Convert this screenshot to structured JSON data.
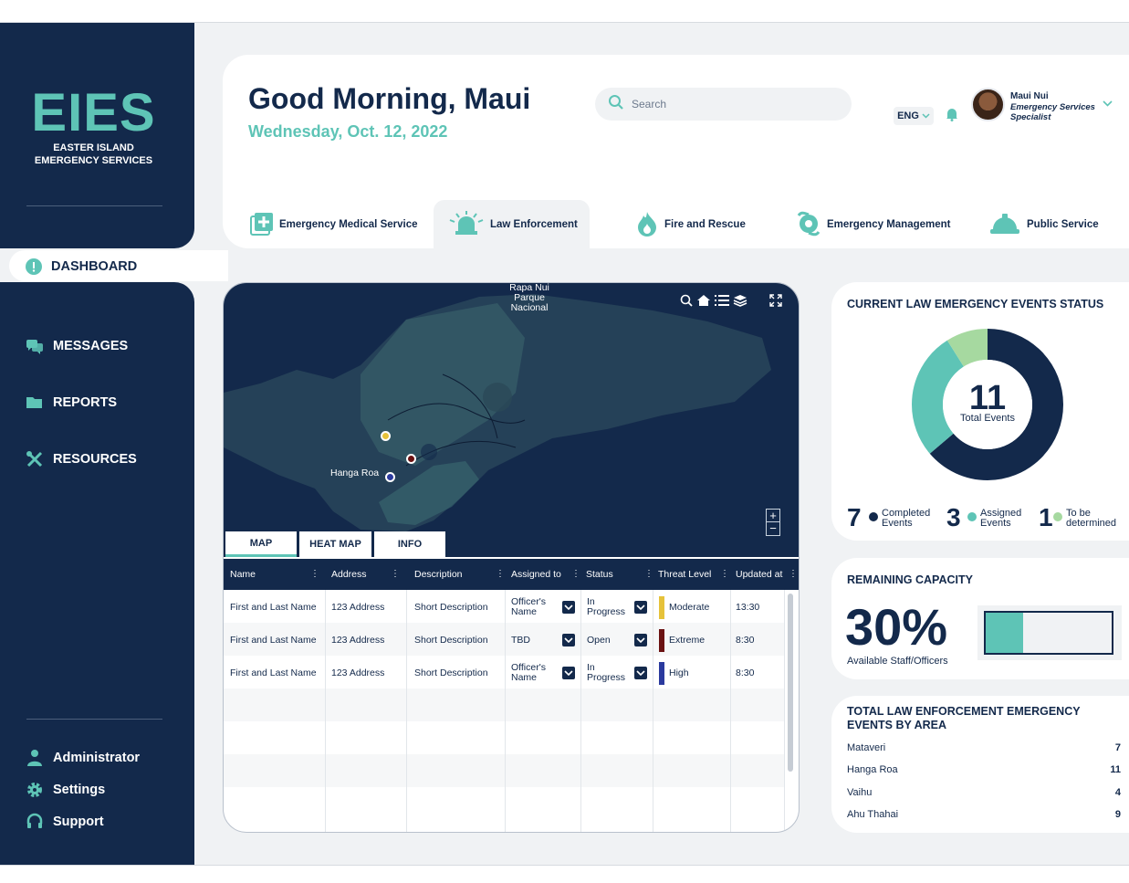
{
  "sidebar": {
    "logo": "EIES",
    "logo_sub_1": "EASTER ISLAND",
    "logo_sub_2": "EMERGENCY SERVICES",
    "nav": [
      "DASHBOARD",
      "MESSAGES",
      "REPORTS",
      "RESOURCES"
    ],
    "bottom": [
      "Administrator",
      "Settings",
      "Support"
    ]
  },
  "header": {
    "greeting": "Good Morning, Maui",
    "date": "Wednesday, Oct. 12, 2022",
    "search_placeholder": "Search",
    "language": "ENG",
    "user_name": "Maui Nui",
    "user_role": "Emergency Services Specialist"
  },
  "tabs": [
    "Emergency Medical Service",
    "Law Enforcement",
    "Fire and Rescue",
    "Emergency Management",
    "Public Service"
  ],
  "active_tab": "Law Enforcement",
  "map": {
    "label_park": "Rapa Nui Parque Nacional",
    "label_town": "Hanga Roa",
    "tabs": [
      "MAP",
      "HEAT MAP",
      "INFO"
    ],
    "active_tab": "MAP"
  },
  "table": {
    "headers": [
      "Name",
      "Address",
      "Description",
      "Assigned to",
      "Status",
      "Threat Level",
      "Updated at"
    ],
    "rows": [
      {
        "name": "First and Last Name",
        "address": "123 Address",
        "description": "Short Description",
        "assigned": "Officer's Name",
        "status": "In Progress",
        "threat": "Moderate",
        "threat_color": "#e6c23a",
        "updated": "13:30"
      },
      {
        "name": "First and Last Name",
        "address": "123 Address",
        "description": "Short Description",
        "assigned": "TBD",
        "status": "Open",
        "threat": "Extreme",
        "threat_color": "#6b1212",
        "updated": "8:30"
      },
      {
        "name": "First and Last Name",
        "address": "123 Address",
        "description": "Short Description",
        "assigned": "Officer's Name",
        "status": "In Progress",
        "threat": "High",
        "threat_color": "#2b3a9e",
        "updated": "8:30"
      }
    ]
  },
  "events_status": {
    "title": "CURRENT LAW EMERGENCY EVENTS STATUS",
    "total": "11",
    "total_label": "Total Events",
    "stats": [
      {
        "num": "7",
        "label": "Completed Events",
        "color": "#13294b"
      },
      {
        "num": "3",
        "label": "Assigned Events",
        "color": "#5ec4b6"
      },
      {
        "num": "1",
        "label": "To be determined",
        "color": "#a6d9a0"
      }
    ]
  },
  "capacity": {
    "title": "REMAINING CAPACITY",
    "value": "30%",
    "fraction": 0.3,
    "label": "Available Staff/Officers"
  },
  "areas": {
    "title_1": "TOTAL LAW ENFORCEMENT EMERGENCY",
    "title_2": "EVENTS BY AREA",
    "rows": [
      {
        "name": "Mataveri",
        "value": "7"
      },
      {
        "name": "Hanga Roa",
        "value": "11"
      },
      {
        "name": "Vaihu",
        "value": "4"
      },
      {
        "name": "Ahu Thahai",
        "value": "9"
      }
    ]
  },
  "colors": {
    "navy": "#13294b",
    "teal": "#5ec4b6",
    "light_green": "#a6d9a0",
    "background": "#f0f2f4"
  }
}
